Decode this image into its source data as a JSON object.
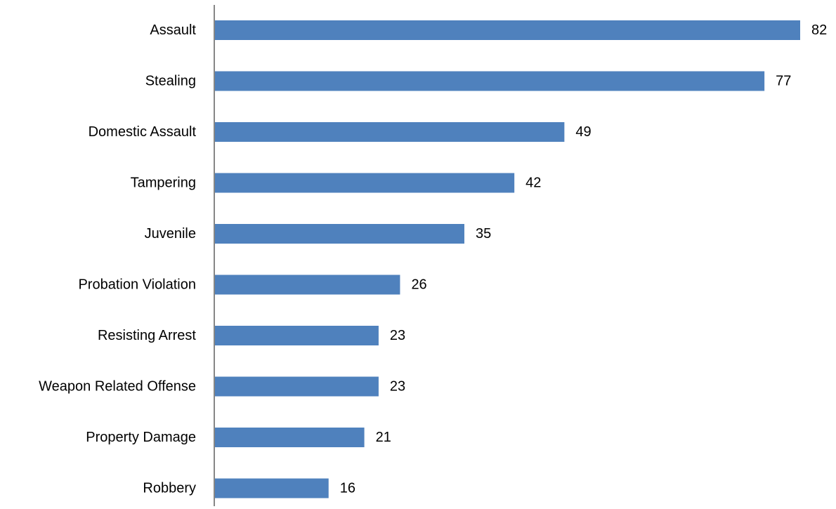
{
  "chart_data": {
    "type": "bar",
    "orientation": "horizontal",
    "categories": [
      "Assault",
      "Stealing",
      "Domestic Assault",
      "Tampering",
      "Juvenile",
      "Probation Violation",
      "Resisting Arrest",
      "Weapon Related Offense",
      "Property Damage",
      "Robbery"
    ],
    "values": [
      82,
      77,
      49,
      42,
      35,
      26,
      23,
      23,
      21,
      16
    ],
    "title": "",
    "xlabel": "",
    "ylabel": "",
    "xlim": [
      0,
      82
    ],
    "grid": false,
    "data_labels": true,
    "bar_color": "#4f81bd",
    "axis_color": "#868686"
  }
}
